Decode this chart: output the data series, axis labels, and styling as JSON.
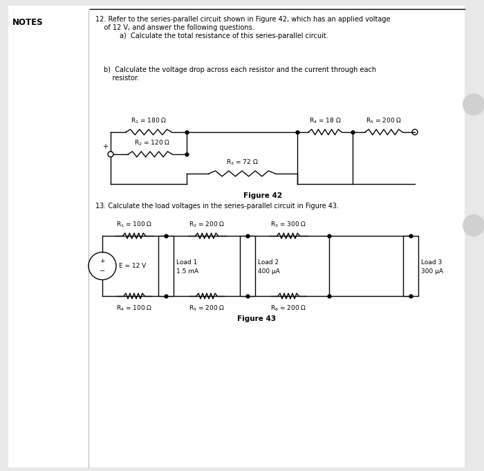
{
  "bg_color": "#e8e8e8",
  "page_bg": "#ffffff",
  "notes_text": "NOTES",
  "q12_line1": "12. Refer to the series-parallel circuit shown in Figure 42, which has an applied voltage",
  "q12_line2": "    of 12 V, and answer the following questions.",
  "q12_line3": "        a)  Calculate the total resistance of this series-parallel circuit.",
  "q12b_line1": "b)  Calculate the voltage drop across each resistor and the current through each",
  "q12b_line2": "    resistor.",
  "fig42_label": "Figure 42",
  "q13_text": "13. Calculate the load voltages in the series-parallel circuit in Figure 43.",
  "fig43_label": "Figure 43",
  "text_color": "#000000",
  "line_color": "#000000"
}
